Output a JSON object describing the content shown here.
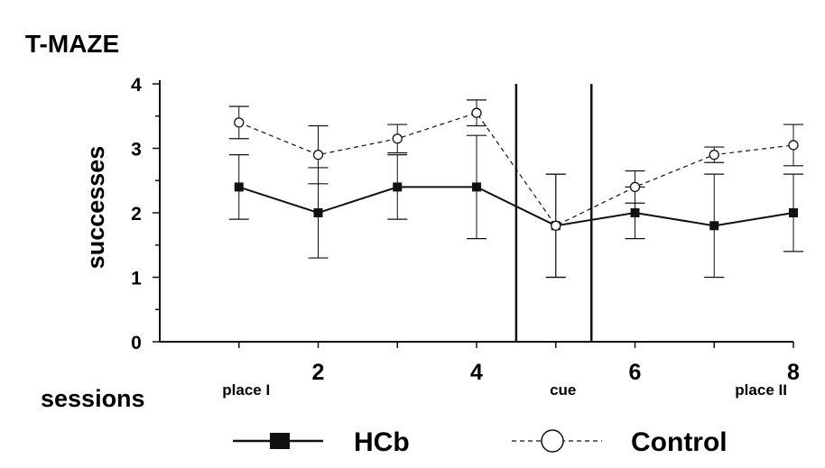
{
  "chart_data": {
    "type": "line",
    "title": "T-MAZE",
    "xlabel": "sessions",
    "ylabel": "successes",
    "x": [
      1,
      2,
      3,
      4,
      5,
      6,
      7,
      8
    ],
    "x_ticks": [
      "2",
      "4",
      "6",
      "8"
    ],
    "x_tick_values": [
      2,
      4,
      6,
      8
    ],
    "xlim": [
      0,
      8
    ],
    "y_ticks": [
      "0",
      "1",
      "2",
      "3",
      "4"
    ],
    "ylim": [
      0,
      4
    ],
    "grid": false,
    "phases": [
      {
        "label": "place I",
        "x": 1
      },
      {
        "label": "cue",
        "x": 5
      },
      {
        "label": "place II",
        "x": 7.5
      }
    ],
    "dividers": [
      4.5,
      5.45
    ],
    "series": [
      {
        "name": "HCb",
        "marker": "filled-square",
        "line": "solid",
        "values": [
          2.4,
          2.0,
          2.4,
          2.4,
          1.8,
          2.0,
          1.8,
          2.0
        ],
        "error": [
          0.5,
          0.7,
          0.5,
          0.8,
          0.8,
          0.4,
          0.8,
          0.6
        ]
      },
      {
        "name": "Control",
        "marker": "open-circle",
        "line": "dashed",
        "values": [
          3.4,
          2.9,
          3.15,
          3.55,
          1.8,
          2.4,
          2.9,
          3.05
        ],
        "error": [
          0.25,
          0.45,
          0.22,
          0.2,
          0.8,
          0.25,
          0.12,
          0.32
        ]
      }
    ],
    "legend": {
      "placement": "bottom"
    },
    "colors": {
      "ink": "#111111",
      "background": "#ffffff"
    }
  }
}
